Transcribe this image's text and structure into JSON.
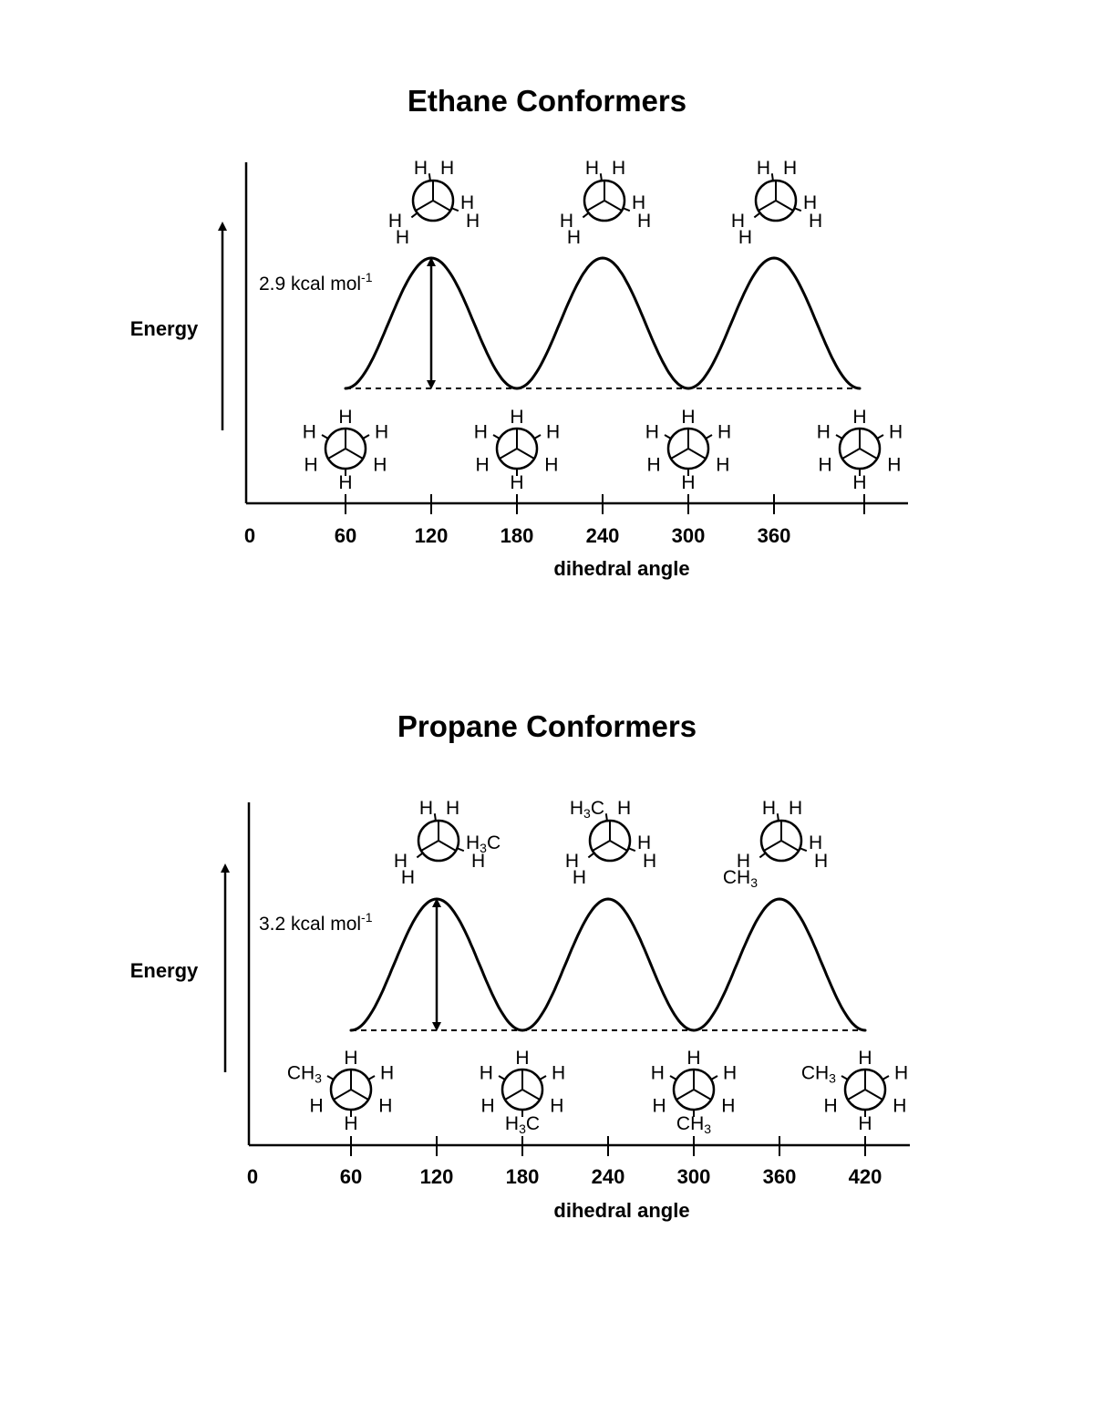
{
  "charts": [
    {
      "title": "Ethane Conformers",
      "ylabel": "Energy",
      "xlabel": "dihedral angle",
      "barrier_label": "2.9 kcal mol",
      "barrier_exp": "-1",
      "tick_labels": [
        "0",
        "60",
        "120",
        "180",
        "240",
        "300",
        "360",
        ""
      ],
      "eclipsed": [
        {
          "x": 120,
          "front": [
            "H",
            "H",
            "H"
          ],
          "back": [
            "H",
            "H",
            "H"
          ]
        },
        {
          "x": 240,
          "front": [
            "H",
            "H",
            "H"
          ],
          "back": [
            "H",
            "H",
            "H"
          ]
        },
        {
          "x": 360,
          "front": [
            "H",
            "H",
            "H"
          ],
          "back": [
            "H",
            "H",
            "H"
          ]
        }
      ],
      "staggered": [
        {
          "x": 60,
          "front": [
            "H",
            "H",
            "H"
          ],
          "back": [
            "H",
            "H",
            "H"
          ]
        },
        {
          "x": 180,
          "front": [
            "H",
            "H",
            "H"
          ],
          "back": [
            "H",
            "H",
            "H"
          ]
        },
        {
          "x": 300,
          "front": [
            "H",
            "H",
            "H"
          ],
          "back": [
            "H",
            "H",
            "H"
          ]
        },
        {
          "x": 420,
          "front": [
            "H",
            "H",
            "H"
          ],
          "back": [
            "H",
            "H",
            "H"
          ]
        }
      ]
    },
    {
      "title": "Propane Conformers",
      "ylabel": "Energy",
      "xlabel": "dihedral angle",
      "barrier_label": "3.2 kcal mol",
      "barrier_exp": "-1",
      "tick_labels": [
        "0",
        "60",
        "120",
        "180",
        "240",
        "300",
        "360",
        "420"
      ],
      "eclipsed": [
        {
          "x": 120,
          "front": [
            "H",
            "H",
            "H"
          ],
          "back": [
            "H",
            "H",
            "H3C"
          ]
        },
        {
          "x": 240,
          "front": [
            "H",
            "H",
            "H"
          ],
          "back": [
            "H3C",
            "H",
            "H"
          ]
        },
        {
          "x": 360,
          "front": [
            "H",
            "H",
            "H"
          ],
          "back": [
            "H",
            "CH3",
            "H"
          ]
        }
      ],
      "staggered": [
        {
          "x": 60,
          "front": [
            "H",
            "H",
            "H"
          ],
          "back": [
            "H",
            "CH3",
            "H"
          ]
        },
        {
          "x": 180,
          "front": [
            "H",
            "H",
            "H"
          ],
          "back": [
            "H3C",
            "H",
            "H"
          ]
        },
        {
          "x": 300,
          "front": [
            "H",
            "H",
            "H"
          ],
          "back": [
            "CH3",
            "H",
            "H"
          ]
        },
        {
          "x": 420,
          "front": [
            "H",
            "H",
            "H"
          ],
          "back": [
            "H",
            "CH3",
            "H"
          ]
        }
      ]
    }
  ],
  "chart_data": [
    {
      "type": "line",
      "title": "Ethane Conformers",
      "xlabel": "dihedral angle",
      "ylabel": "Energy",
      "x": [
        60,
        120,
        180,
        240,
        300,
        360,
        420
      ],
      "y": [
        0,
        2.9,
        0,
        2.9,
        0,
        2.9,
        0
      ],
      "xticks": [
        0,
        60,
        120,
        180,
        240,
        300,
        360
      ],
      "barrier_annotation": "2.9 kcal mol-1",
      "grid": false
    },
    {
      "type": "line",
      "title": "Propane Conformers",
      "xlabel": "dihedral angle",
      "ylabel": "Energy",
      "x": [
        60,
        120,
        180,
        240,
        300,
        360,
        420
      ],
      "y": [
        0,
        3.2,
        0,
        3.2,
        0,
        3.2,
        0
      ],
      "xticks": [
        0,
        60,
        120,
        180,
        240,
        300,
        360,
        420
      ],
      "barrier_annotation": "3.2 kcal mol-1",
      "grid": false
    }
  ]
}
